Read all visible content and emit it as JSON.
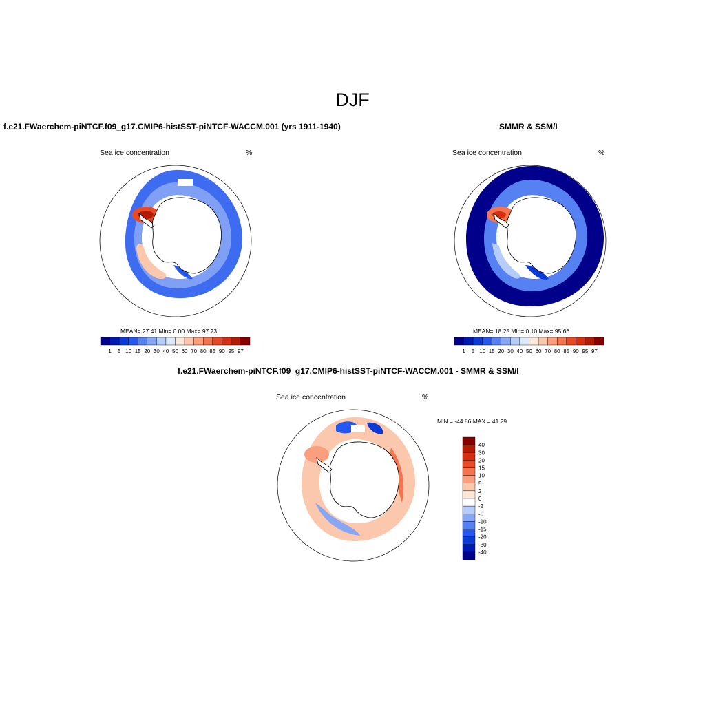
{
  "figure": {
    "title": "DJF"
  },
  "panels": {
    "model": {
      "title": "f.e21.FWaerchem-piNTCF.f09_g17.CMIP6-histSST-piNTCF-WACCM.001 (yrs 1911-1940)",
      "variable": "Sea ice concentration",
      "units": "%",
      "stats": "MEAN=  27.41  Min=   0.00  Max=  97.23"
    },
    "obs": {
      "title": "SMMR & SSM/I",
      "variable": "Sea ice concentration",
      "units": "%",
      "stats": "MEAN=  18.25  Min=   0.10  Max=  95.66"
    },
    "diff": {
      "title": "f.e21.FWaerchem-piNTCF.f09_g17.CMIP6-histSST-piNTCF-WACCM.001 - SMMR & SSM/I",
      "variable": "Sea ice concentration",
      "units": "%",
      "stats": "MIN = -44.86 MAX =  41.29"
    }
  },
  "colorbars": {
    "concentration": {
      "levels": [
        "1",
        "5",
        "10",
        "15",
        "20",
        "30",
        "40",
        "50",
        "60",
        "70",
        "80",
        "85",
        "90",
        "95",
        "97"
      ],
      "colors": [
        "#00008b",
        "#0018b4",
        "#0a3ad6",
        "#2458f0",
        "#5581f3",
        "#87a7f5",
        "#b5cdf8",
        "#dce9fb",
        "#fde8d8",
        "#fbc7ad",
        "#f99f7e",
        "#f4744f",
        "#e84b24",
        "#d62f10",
        "#b21c05",
        "#870000"
      ]
    },
    "difference": {
      "levels": [
        "40",
        "30",
        "20",
        "15",
        "10",
        "5",
        "2",
        "0",
        "-2",
        "-5",
        "-10",
        "-15",
        "-20",
        "-30",
        "-40"
      ],
      "colors": [
        "#870000",
        "#b21c05",
        "#d62f10",
        "#e84b24",
        "#f4744f",
        "#f99f7e",
        "#fbc7ad",
        "#fde8d8",
        "#ffffff",
        "#b5cdf8",
        "#87a7f5",
        "#5581f3",
        "#2458f0",
        "#0a3ad6",
        "#0018b4",
        "#00008b"
      ]
    }
  }
}
